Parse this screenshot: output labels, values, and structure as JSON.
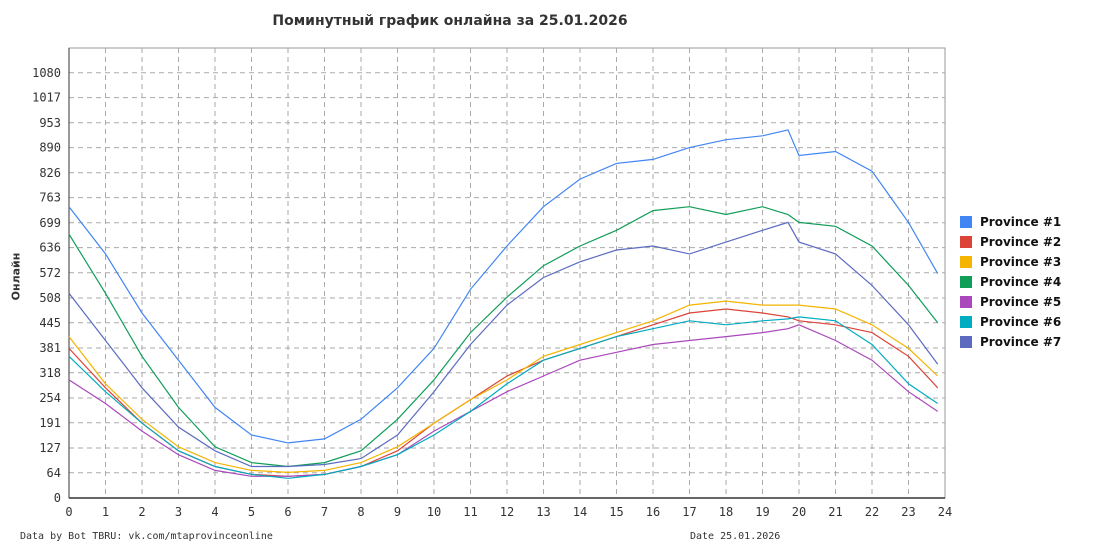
{
  "chart_data": {
    "type": "line",
    "title": "Поминутный график онлайна за 25.01.2026",
    "ylabel": "Онлайн",
    "xlabel": "",
    "xlim": [
      0,
      24
    ],
    "ylim": [
      0,
      1143
    ],
    "grid": true,
    "legend_position": "right",
    "x_ticks": [
      "0",
      "1",
      "2",
      "3",
      "4",
      "5",
      "6",
      "7",
      "8",
      "9",
      "10",
      "11",
      "12",
      "13",
      "14",
      "15",
      "16",
      "17",
      "18",
      "19",
      "20",
      "21",
      "22",
      "23",
      "24"
    ],
    "y_ticks": [
      "0",
      "64",
      "127",
      "191",
      "254",
      "318",
      "381",
      "445",
      "508",
      "572",
      "636",
      "699",
      "763",
      "826",
      "890",
      "953",
      "1017",
      "1080"
    ],
    "x": [
      0,
      1,
      2,
      3,
      4,
      5,
      6,
      7,
      8,
      9,
      10,
      11,
      12,
      13,
      14,
      15,
      16,
      17,
      18,
      19,
      19.7,
      20,
      21,
      22,
      23,
      23.8
    ],
    "series": [
      {
        "name": "Province #1",
        "color": "#4285f4",
        "values": [
          740,
          620,
          470,
          350,
          230,
          160,
          140,
          150,
          200,
          280,
          380,
          530,
          640,
          740,
          810,
          850,
          860,
          890,
          910,
          920,
          935,
          870,
          880,
          830,
          700,
          570
        ]
      },
      {
        "name": "Province #2",
        "color": "#db4437",
        "values": [
          380,
          280,
          190,
          120,
          80,
          60,
          55,
          60,
          80,
          120,
          190,
          250,
          310,
          350,
          380,
          410,
          440,
          470,
          480,
          470,
          460,
          450,
          440,
          420,
          360,
          280
        ]
      },
      {
        "name": "Province #3",
        "color": "#f4b400",
        "values": [
          410,
          290,
          200,
          130,
          90,
          70,
          65,
          70,
          90,
          130,
          190,
          250,
          300,
          360,
          390,
          420,
          450,
          490,
          500,
          490,
          490,
          490,
          480,
          440,
          380,
          310
        ]
      },
      {
        "name": "Province #4",
        "color": "#0f9d58",
        "values": [
          670,
          520,
          360,
          230,
          130,
          90,
          80,
          90,
          120,
          200,
          300,
          420,
          510,
          590,
          640,
          680,
          730,
          740,
          720,
          740,
          720,
          700,
          690,
          640,
          540,
          445
        ]
      },
      {
        "name": "Province #5",
        "color": "#ab47bc",
        "values": [
          300,
          240,
          170,
          110,
          70,
          55,
          55,
          60,
          80,
          110,
          170,
          220,
          270,
          310,
          350,
          370,
          390,
          400,
          410,
          420,
          430,
          440,
          400,
          350,
          270,
          220
        ]
      },
      {
        "name": "Province #6",
        "color": "#00acc1",
        "values": [
          360,
          270,
          190,
          120,
          80,
          60,
          50,
          60,
          80,
          110,
          160,
          220,
          290,
          350,
          380,
          410,
          430,
          450,
          440,
          450,
          455,
          460,
          450,
          390,
          290,
          240
        ]
      },
      {
        "name": "Province #7",
        "color": "#5c6bc0",
        "values": [
          520,
          400,
          280,
          180,
          120,
          80,
          80,
          85,
          100,
          160,
          270,
          390,
          490,
          560,
          600,
          630,
          640,
          620,
          650,
          680,
          700,
          650,
          620,
          540,
          440,
          340
        ]
      }
    ]
  },
  "footer": {
    "source": "Data by Bot TBRU: vk.com/mtaprovinceonline",
    "date": "Date 25.01.2026"
  }
}
